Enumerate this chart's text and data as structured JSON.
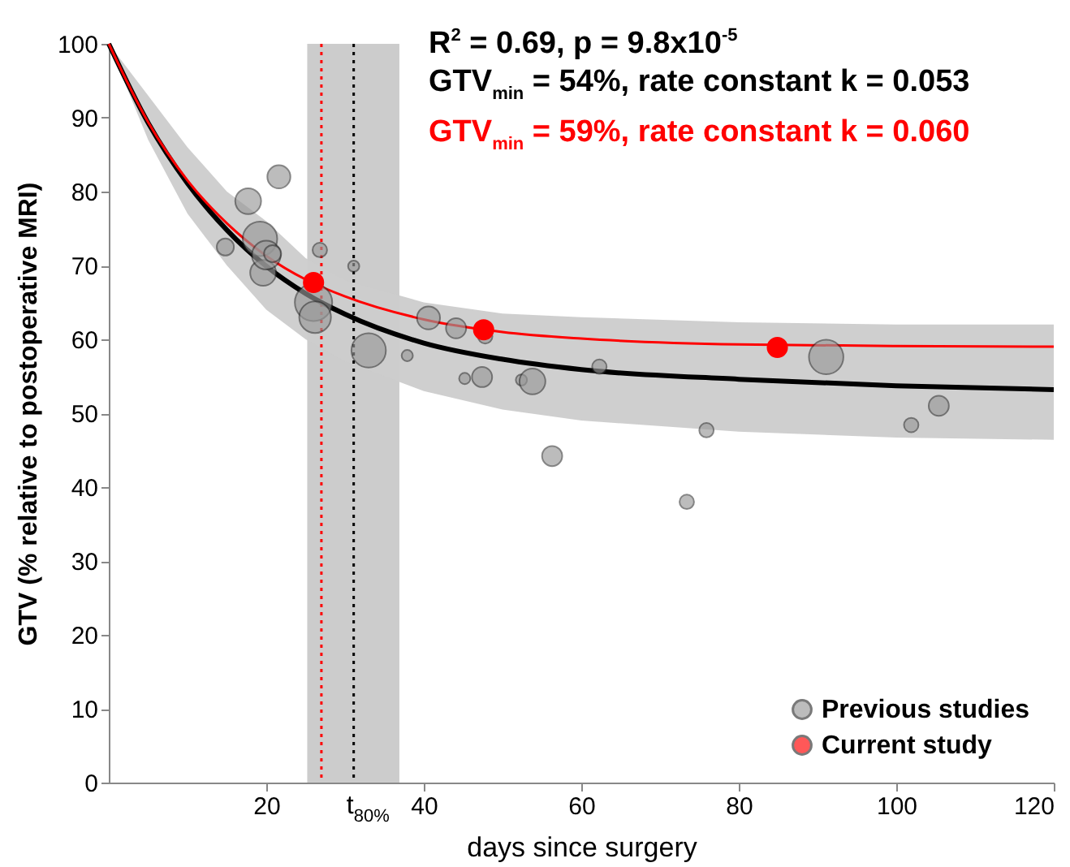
{
  "chart_data": {
    "type": "scatter",
    "xlabel": "days since surgery",
    "ylabel": "GTV (% relative to postoperative MRI)",
    "annotations": [
      "R$^{2}$ = 0.69, p = 9.8x10$^{-5}$",
      "GTV$_{min}$ = 54%, rate constant k = 0.053",
      "GTV$_{min}$ = 59%, rate constant k = 0.060"
    ],
    "xlim": [
      0,
      120
    ],
    "xticks": [
      20,
      40,
      60,
      80,
      100,
      120
    ],
    "ylim": [
      0,
      100
    ],
    "yticks": [
      0,
      10,
      20,
      30,
      40,
      50,
      60,
      70,
      80,
      90,
      100
    ],
    "grid": false,
    "legend": "bottom right",
    "marker": "circle",
    "bands": [
      {
        "axis": "x",
        "from": 25.2,
        "to": 36.9,
        "color": "#cccccc"
      }
    ],
    "ref_lines": [
      {
        "axis": "x",
        "value": 27,
        "color": "#ff0000",
        "line_style": "dotted"
      },
      {
        "axis": "x",
        "value": 31.1,
        "color": "#000000",
        "line_style": "dotted",
        "label": "t$_{80%}$"
      }
    ],
    "series": [
      {
        "type": "line",
        "marker": "none",
        "color": "#000000",
        "x": [
          0,
          5,
          10,
          15,
          20,
          25,
          30,
          40,
          50,
          60,
          80,
          100,
          120
        ],
        "values": [
          100,
          89.3,
          81.1,
          74.8,
          69.9,
          66.2,
          63.4,
          59.5,
          57.3,
          55.9,
          54.6,
          53.7,
          53.2
        ],
        "lower": [
          100,
          87,
          77,
          70,
          64,
          60,
          57,
          53,
          50.5,
          49,
          47.5,
          46.7,
          46.4
        ],
        "upper": [
          100,
          93,
          86,
          80,
          76,
          71,
          68,
          65,
          63.5,
          63,
          62.3,
          62,
          62
        ]
      },
      {
        "type": "line",
        "marker": "none",
        "color": "#ff0000",
        "x": [
          0,
          5,
          10,
          15,
          20,
          25,
          30,
          40,
          50,
          60,
          80,
          100,
          120
        ],
        "values": [
          100,
          89.4,
          81.5,
          75.7,
          71.3,
          68.1,
          65.8,
          62.7,
          61.0,
          60.1,
          59.3,
          59.1,
          59.0
        ]
      },
      {
        "type": "bubble",
        "name": "Previous studies",
        "color": "#999999",
        "x": [
          14.8,
          17.7,
          19.2,
          19.6,
          20,
          20.8,
          21.6,
          26.8,
          26,
          26.2,
          31.1,
          33,
          37.9,
          40.6,
          44.1,
          45.2,
          47.4,
          47.8,
          52.4,
          53.8,
          56.3,
          62.3,
          73.4,
          75.9,
          91.1,
          101.9,
          105.4
        ],
        "values": [
          72.5,
          78.7,
          73.6,
          69,
          71.4,
          71.6,
          82,
          72.1,
          65,
          63,
          69.9,
          58.5,
          57.8,
          62.9,
          61.5,
          54.7,
          54.9,
          60.4,
          54.5,
          54.3,
          44.2,
          56.3,
          38,
          47.7,
          57.6,
          48.4,
          51
        ],
        "sizes": [
          0.21,
          0.48,
          0.85,
          0.48,
          0.59,
          0.21,
          0.38,
          0.15,
          1,
          0.72,
          0.09,
          0.85,
          0.09,
          0.38,
          0.29,
          0.09,
          0.29,
          0.15,
          0.09,
          0.48,
          0.29,
          0.15,
          0.15,
          0.15,
          0.85,
          0.15,
          0.29
        ]
      },
      {
        "name": "Current study",
        "color": "#ff0000",
        "x": [
          26,
          47.6,
          84.9
        ],
        "values": [
          67.7,
          61.3,
          58.9
        ]
      }
    ]
  }
}
